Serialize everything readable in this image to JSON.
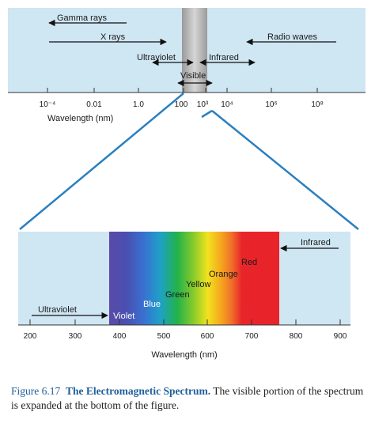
{
  "top_panel": {
    "bands": [
      "Gamma rays",
      "X rays",
      "Ultraviolet",
      "Infrared",
      "Radio waves"
    ],
    "visible_label": "Visible",
    "ticks": [
      "10⁻⁴",
      "0.01",
      "1.0",
      "100",
      "10³",
      "10⁴",
      "10⁶",
      "10⁸"
    ],
    "axis_label": "Wavelength (nm)"
  },
  "bottom_panel": {
    "ultraviolet_label": "Ultraviolet",
    "infrared_label": "Infrared",
    "colors": [
      "Violet",
      "Blue",
      "Green",
      "Yellow",
      "Orange",
      "Red"
    ],
    "ticks": [
      "200",
      "300",
      "400",
      "500",
      "600",
      "700",
      "800",
      "900"
    ],
    "axis_label": "Wavelength (nm)"
  },
  "caption": {
    "number": "Figure 6.17",
    "title": "The Electromagnetic Spectrum.",
    "text": " The visible portion of the spectrum is expanded at the bottom of the figure."
  },
  "colors": {
    "panel_bg": "#cfe6f3",
    "arrow_black": "#111111",
    "connector_blue": "#2a7fc0",
    "visible_band": "#b8b8b8",
    "caption_blue": "#1f5f9a"
  }
}
